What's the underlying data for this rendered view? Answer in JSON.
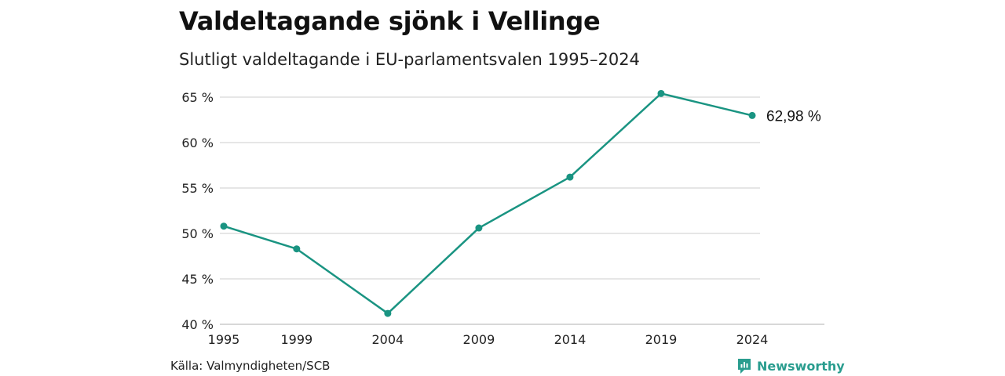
{
  "title": "Valdeltagande sjönk i Vellinge",
  "subtitle": "Slutligt valdeltagande i EU-parlamentsvalen 1995–2024",
  "source": "Källa: Valmyndigheten/SCB",
  "brand": {
    "name": "Newsworthy",
    "icon": "newsworthy-logo-icon",
    "color": "#2a9d8f"
  },
  "colors": {
    "line": "#1a9482",
    "grid": "#dddddd",
    "axis": "#cccccc"
  },
  "chart_data": {
    "type": "line",
    "title": "Valdeltagande sjönk i Vellinge",
    "subtitle": "Slutligt valdeltagande i EU-parlamentsvalen 1995–2024",
    "x": [
      1995,
      1999,
      2004,
      2009,
      2014,
      2019,
      2024
    ],
    "xticks": [
      "1995",
      "1999",
      "2004",
      "2009",
      "2014",
      "2019",
      "2024"
    ],
    "values": [
      50.8,
      48.3,
      41.2,
      50.6,
      56.2,
      65.4,
      62.98
    ],
    "ylim": [
      40,
      65
    ],
    "yticks": [
      40,
      45,
      50,
      55,
      60,
      65
    ],
    "ytick_labels": [
      "40 %",
      "45 %",
      "50 %",
      "55 %",
      "60 %",
      "65 %"
    ],
    "end_label": "62,98 %",
    "grid": true,
    "legend": "none"
  }
}
